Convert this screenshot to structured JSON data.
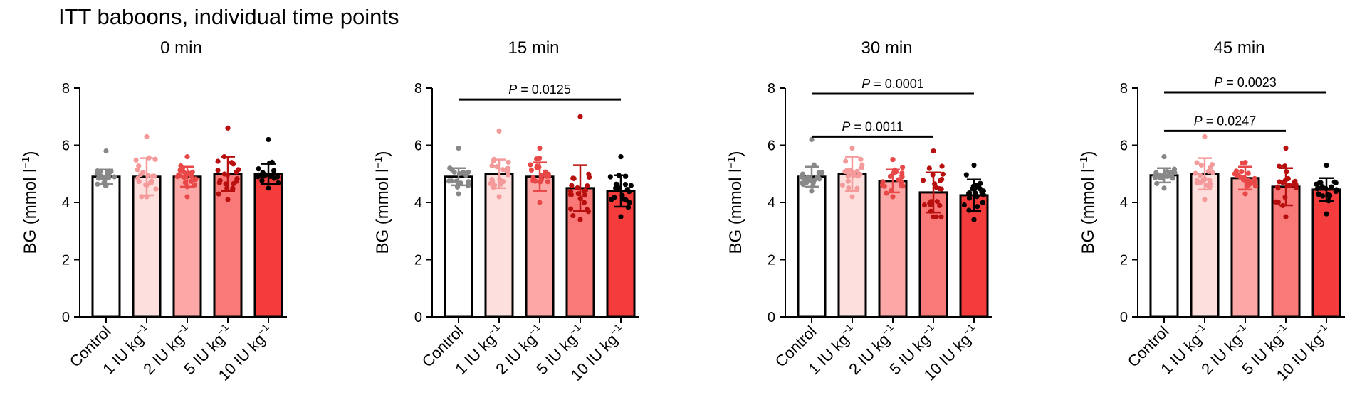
{
  "title": "ITT baboons, individual time points",
  "colors": {
    "Control": "#ffffff",
    "1 IU kg-1": "#fde0de",
    "2 IU kg-1": "#fba8a6",
    "5 IU kg-1": "#f97878",
    "10 IU kg-1": "#f43c3c",
    "dots": [
      "#888888",
      "#f49a9a",
      "#e84848",
      "#b80f0f",
      "#000000"
    ]
  },
  "chart_data": [
    {
      "type": "bar",
      "title": "0 min",
      "ylabel": "BG (mmol l",
      "ylabel_sup": "−1",
      "ylabel_close": ")",
      "ylim": [
        0,
        8
      ],
      "yticks": [
        0,
        2,
        4,
        6,
        8
      ],
      "categories": [
        {
          "base": "Control",
          "sup": ""
        },
        {
          "base": "1 IU kg",
          "sup": "−1"
        },
        {
          "base": "2 IU kg",
          "sup": "−1"
        },
        {
          "base": "5 IU kg",
          "sup": "−1"
        },
        {
          "base": "10 IU kg",
          "sup": "−1"
        }
      ],
      "values": [
        4.9,
        4.9,
        4.9,
        5.0,
        5.0
      ],
      "sd": [
        0.25,
        0.65,
        0.35,
        0.6,
        0.35
      ],
      "points_max": [
        5.8,
        6.3,
        5.6,
        6.6,
        6.2
      ],
      "points_min": [
        4.6,
        4.2,
        4.2,
        4.1,
        4.5
      ],
      "comparisons": []
    },
    {
      "type": "bar",
      "title": "15 min",
      "ylabel": "BG (mmol l",
      "ylabel_sup": "−1",
      "ylabel_close": ")",
      "ylim": [
        0,
        8
      ],
      "yticks": [
        0,
        2,
        4,
        6,
        8
      ],
      "categories": [
        {
          "base": "Control",
          "sup": ""
        },
        {
          "base": "1 IU kg",
          "sup": "−1"
        },
        {
          "base": "2 IU kg",
          "sup": "−1"
        },
        {
          "base": "5 IU kg",
          "sup": "−1"
        },
        {
          "base": "10 IU kg",
          "sup": "−1"
        }
      ],
      "values": [
        4.9,
        5.0,
        4.9,
        4.5,
        4.4
      ],
      "sd": [
        0.3,
        0.5,
        0.5,
        0.8,
        0.55
      ],
      "points_max": [
        5.9,
        6.5,
        5.9,
        7.0,
        5.6
      ],
      "points_min": [
        4.3,
        4.2,
        4.0,
        3.4,
        3.5
      ],
      "comparisons": [
        {
          "from": 0,
          "to": 4,
          "y": 7.6,
          "p_label": "P",
          "p_value": " = 0.0125"
        }
      ]
    },
    {
      "type": "bar",
      "title": "30 min",
      "ylabel": "BG (mmol l",
      "ylabel_sup": "−1",
      "ylabel_close": ")",
      "ylim": [
        0,
        8
      ],
      "yticks": [
        0,
        2,
        4,
        6,
        8
      ],
      "categories": [
        {
          "base": "Control",
          "sup": ""
        },
        {
          "base": "1 IU kg",
          "sup": "−1"
        },
        {
          "base": "2 IU kg",
          "sup": "−1"
        },
        {
          "base": "5 IU kg",
          "sup": "−1"
        },
        {
          "base": "10 IU kg",
          "sup": "−1"
        }
      ],
      "values": [
        4.9,
        5.0,
        4.75,
        4.35,
        4.25
      ],
      "sd": [
        0.35,
        0.6,
        0.4,
        0.7,
        0.55
      ],
      "points_max": [
        6.2,
        5.9,
        5.5,
        5.8,
        5.3
      ],
      "points_min": [
        4.4,
        4.2,
        4.2,
        3.5,
        3.4
      ],
      "comparisons": [
        {
          "from": 0,
          "to": 3,
          "y": 6.3,
          "p_label": "P",
          "p_value": " = 0.0011"
        },
        {
          "from": 0,
          "to": 4,
          "y": 7.8,
          "p_label": "P",
          "p_value": " = 0.0001"
        }
      ]
    },
    {
      "type": "bar",
      "title": "45 min",
      "ylabel": "BG (mmol l",
      "ylabel_sup": "−1",
      "ylabel_close": ")",
      "ylim": [
        0,
        8
      ],
      "yticks": [
        0,
        2,
        4,
        6,
        8
      ],
      "categories": [
        {
          "base": "Control",
          "sup": ""
        },
        {
          "base": "1 IU kg",
          "sup": "−1"
        },
        {
          "base": "2 IU kg",
          "sup": "−1"
        },
        {
          "base": "5 IU kg",
          "sup": "−1"
        },
        {
          "base": "10 IU kg",
          "sup": "−1"
        }
      ],
      "values": [
        4.95,
        5.0,
        4.85,
        4.55,
        4.45
      ],
      "sd": [
        0.25,
        0.55,
        0.4,
        0.65,
        0.4
      ],
      "points_max": [
        5.6,
        6.3,
        5.4,
        5.9,
        5.3
      ],
      "points_min": [
        4.5,
        4.1,
        4.3,
        3.5,
        3.6
      ],
      "comparisons": [
        {
          "from": 0,
          "to": 3,
          "y": 6.5,
          "p_label": "P",
          "p_value": " = 0.0247"
        },
        {
          "from": 0,
          "to": 4,
          "y": 7.85,
          "p_label": "P",
          "p_value": " = 0.0023"
        }
      ]
    }
  ]
}
